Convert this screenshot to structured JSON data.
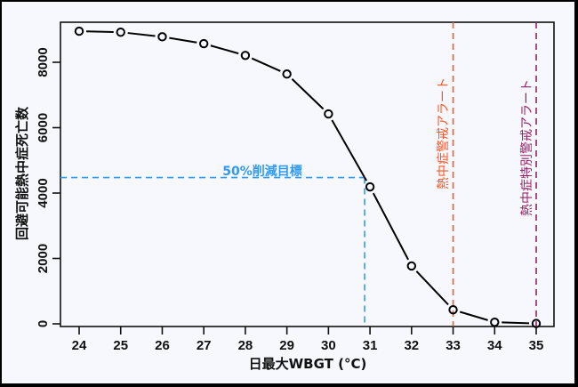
{
  "chart_data": {
    "type": "line",
    "title": "",
    "xlabel": "日最大WBGT (°C)",
    "ylabel": "回避可能熱中症死亡数",
    "x": [
      24,
      25,
      26,
      27,
      28,
      29,
      30,
      31,
      32,
      33,
      34,
      35
    ],
    "series": [
      {
        "name": "回避可能熱中症死亡数",
        "values": [
          8950,
          8920,
          8780,
          8570,
          8210,
          7640,
          6420,
          4190,
          1770,
          430,
          50,
          10
        ],
        "color": "#000000",
        "marker": "open-circle"
      }
    ],
    "xlim": [
      23.55,
      35.45
    ],
    "ylim": [
      -80,
      9300
    ],
    "xticks": [
      24,
      25,
      26,
      27,
      28,
      29,
      30,
      31,
      32,
      33,
      34,
      35
    ],
    "yticks": [
      0,
      2000,
      4000,
      6000,
      8000
    ],
    "grid": false,
    "legend": null,
    "annotations": [
      {
        "type": "hline-segment",
        "label": "50%削減目標",
        "y": 4475,
        "x_from": 23.55,
        "x_to": 30.87,
        "color": "#3399ee",
        "style": "dashed"
      },
      {
        "type": "vline-segment",
        "x": 30.87,
        "y_from": -80,
        "y_to": 4475,
        "color": "#3399ee",
        "style": "dashed"
      },
      {
        "type": "vline",
        "label": "熱中症警戒アラート",
        "x": 33,
        "color": "#ff5522",
        "style": "dashed"
      },
      {
        "type": "vline",
        "label": "熱中症特別警戒アラート",
        "x": 35,
        "color": "#992266",
        "style": "dashed"
      }
    ]
  },
  "labels": {
    "xlabel": "日最大WBGT (°C)",
    "ylabel": "回避可能熱中症死亡数",
    "target": "50%削減目標",
    "alert": "熱中症警戒アラート",
    "special_alert": "熱中症特別警戒アラート"
  },
  "colors": {
    "background": "#f7f8fd",
    "frame": "#000000",
    "line": "#000000",
    "target": "#3399ee",
    "alert": "#ff5522",
    "special_alert": "#992266"
  }
}
